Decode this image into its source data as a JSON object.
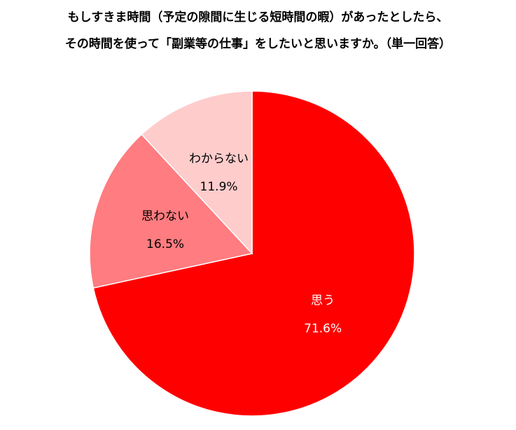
{
  "chart_data": {
    "type": "pie",
    "title_lines": [
      "もしすきま時間（予定の隙間に生じる短時間の暇）があったとしたら、",
      "その時間を使って「副業等の仕事」をしたいと思いますか。（単一回答）"
    ],
    "slices": [
      {
        "label": "思う",
        "value": 71.6,
        "display": "71.6%",
        "color": "#ff0000",
        "text_color": "#ffffff"
      },
      {
        "label": "思わない",
        "value": 16.5,
        "display": "16.5%",
        "color": "#ff7c80",
        "text_color": "#000000"
      },
      {
        "label": "わからない",
        "value": 11.9,
        "display": "11.9%",
        "color": "#ffcccc",
        "text_color": "#000000"
      }
    ],
    "start": "12 o'clock",
    "direction": "clockwise",
    "legend": "none"
  }
}
